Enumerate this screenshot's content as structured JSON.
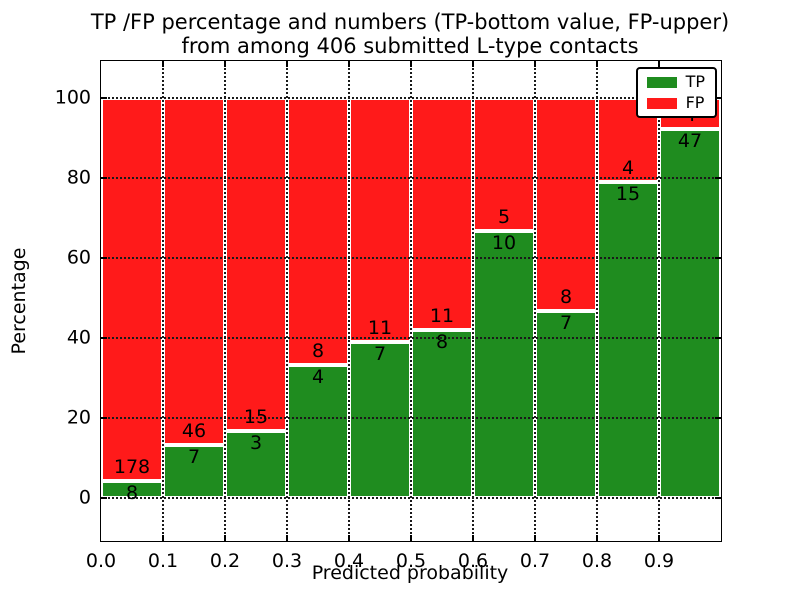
{
  "figure": {
    "title_line1": "TP /FP percentage and numbers (TP-bottom value, FP-upper)",
    "title_line2": "from among 406 submitted L-type contacts",
    "background_color": "#ffffff"
  },
  "chart_data": {
    "type": "bar",
    "stacked": true,
    "normalized": "each bar scaled to 100%",
    "title": "TP /FP percentage and numbers (TP-bottom value, FP-upper)\nfrom among 406 submitted L-type contacts",
    "xlabel": "Predicted probability",
    "ylabel": "Percentage",
    "total_contacts": 406,
    "bin_width": 0.1,
    "xlim": [
      0.0,
      1.0
    ],
    "ylim": [
      -10.75,
      109.25
    ],
    "x_ticks": [
      0.0,
      0.1,
      0.2,
      0.3,
      0.4,
      0.5,
      0.6,
      0.7,
      0.8,
      0.9
    ],
    "x_tick_labels": [
      "0.0",
      "0.1",
      "0.2",
      "0.3",
      "0.4",
      "0.5",
      "0.6",
      "0.7",
      "0.8",
      "0.9"
    ],
    "y_ticks": [
      0,
      20,
      40,
      60,
      80,
      100
    ],
    "y_tick_labels": [
      "0",
      "20",
      "40",
      "60",
      "80",
      "100"
    ],
    "grid": {
      "visible": true,
      "linestyle": "dotted",
      "color": "#1a1a1a",
      "drawn_over_bars": true
    },
    "bar_edge_color": "#ffffff",
    "categories": [
      "0.0-0.1",
      "0.1-0.2",
      "0.2-0.3",
      "0.3-0.4",
      "0.4-0.5",
      "0.5-0.6",
      "0.6-0.7",
      "0.7-0.8",
      "0.8-0.9",
      "0.9-1.0"
    ],
    "series": [
      {
        "name": "TP",
        "color": "#1f8c1f",
        "position": "bottom",
        "counts": [
          8,
          7,
          3,
          4,
          7,
          8,
          10,
          7,
          15,
          47
        ]
      },
      {
        "name": "FP",
        "color": "#ff1a1a",
        "position": "top",
        "counts": [
          178,
          46,
          15,
          8,
          11,
          11,
          5,
          8,
          4,
          4
        ]
      }
    ],
    "tp_percent_of_bin": [
      4.3,
      13.2,
      16.7,
      33.3,
      38.9,
      42.1,
      66.7,
      46.7,
      78.9,
      92.2
    ],
    "legend": {
      "position": "upper right",
      "entries": [
        {
          "label": "TP",
          "color": "#1f8c1f"
        },
        {
          "label": "FP",
          "color": "#ff1a1a"
        }
      ]
    }
  }
}
